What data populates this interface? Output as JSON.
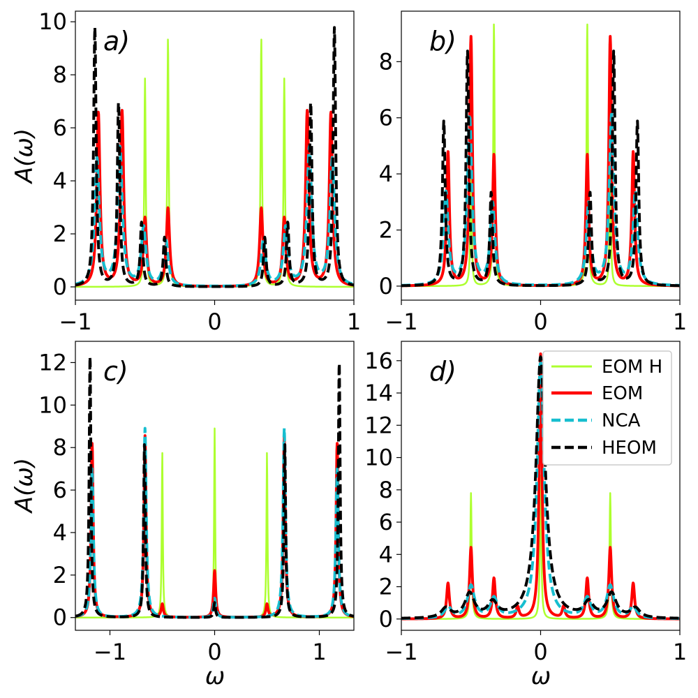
{
  "figure": {
    "ylabel": "A(ω)",
    "xlabel": "ω"
  },
  "legend": {
    "location": "upper-right of panel d",
    "entries": [
      {
        "label": "EOM H",
        "color": "#adff2f",
        "style": "solid"
      },
      {
        "label": "EOM",
        "color": "#ff0000",
        "style": "solid"
      },
      {
        "label": "NCA",
        "color": "#17becf",
        "style": "dashed"
      },
      {
        "label": "HEOM",
        "color": "#000000",
        "style": "dashed"
      }
    ]
  },
  "chart_data": [
    {
      "panel": "a)",
      "type": "line",
      "xlim": [
        -1,
        1
      ],
      "ylim": [
        -0.5,
        10.4
      ],
      "xticks": [
        "−1",
        "0",
        "1"
      ],
      "yticks": [
        "0",
        "2",
        "4",
        "6",
        "8",
        "10"
      ],
      "ylabel": "A(ω)",
      "xlabel": "",
      "series": [
        {
          "name": "EOM H",
          "color": "#adff2f",
          "dashed": false,
          "width": 2.5,
          "gamma": 0.006,
          "peaks": [
            [
              -0.5,
              7.85
            ],
            [
              -0.335,
              9.4
            ],
            [
              0.335,
              9.4
            ],
            [
              0.5,
              7.85
            ]
          ]
        },
        {
          "name": "EOM",
          "color": "#ff0000",
          "dashed": false,
          "width": 4,
          "gamma": 0.014,
          "peaks": [
            [
              -0.835,
              6.55
            ],
            [
              -0.665,
              6.6
            ],
            [
              -0.5,
              2.55
            ],
            [
              -0.335,
              2.95
            ],
            [
              0.335,
              2.95
            ],
            [
              0.5,
              2.55
            ],
            [
              0.665,
              6.6
            ],
            [
              0.835,
              6.55
            ]
          ]
        },
        {
          "name": "NCA",
          "color": "#17becf",
          "dashed": true,
          "width": 4,
          "gamma": 0.02,
          "peaks": [
            [
              -0.845,
              4.8
            ],
            [
              -0.68,
              5.2
            ],
            [
              -0.51,
              2.2
            ],
            [
              -0.35,
              1.7
            ],
            [
              0.35,
              1.7
            ],
            [
              0.51,
              2.2
            ],
            [
              0.68,
              5.2
            ],
            [
              0.845,
              4.8
            ]
          ]
        },
        {
          "name": "HEOM",
          "color": "#000000",
          "dashed": true,
          "width": 4,
          "gamma": 0.011,
          "peaks": [
            [
              -0.86,
              9.75
            ],
            [
              -0.69,
              6.95
            ],
            [
              -0.525,
              2.4
            ],
            [
              -0.36,
              1.85
            ],
            [
              0.36,
              1.85
            ],
            [
              0.525,
              2.4
            ],
            [
              0.69,
              6.95
            ],
            [
              0.86,
              9.75
            ]
          ]
        }
      ]
    },
    {
      "panel": "b)",
      "type": "line",
      "xlim": [
        -1,
        1
      ],
      "ylim": [
        -0.5,
        9.8
      ],
      "xticks": [
        "−1",
        "0",
        "1"
      ],
      "yticks": [
        "0",
        "2",
        "4",
        "6",
        "8"
      ],
      "ylabel": "",
      "xlabel": "",
      "series": [
        {
          "name": "EOM H",
          "color": "#adff2f",
          "dashed": false,
          "width": 2.5,
          "gamma": 0.006,
          "peaks": [
            [
              -0.5,
              4.0
            ],
            [
              -0.335,
              9.4
            ],
            [
              0.335,
              9.4
            ],
            [
              0.5,
              4.0
            ]
          ]
        },
        {
          "name": "EOM",
          "color": "#ff0000",
          "dashed": false,
          "width": 4,
          "gamma": 0.012,
          "peaks": [
            [
              -0.665,
              4.75
            ],
            [
              -0.5,
              8.85
            ],
            [
              -0.335,
              4.65
            ],
            [
              0.335,
              4.65
            ],
            [
              0.5,
              8.85
            ],
            [
              0.665,
              4.75
            ]
          ]
        },
        {
          "name": "NCA",
          "color": "#17becf",
          "dashed": true,
          "width": 4,
          "gamma": 0.02,
          "peaks": [
            [
              -0.68,
              3.3
            ],
            [
              -0.51,
              6.05
            ],
            [
              -0.345,
              2.9
            ],
            [
              0.345,
              2.9
            ],
            [
              0.51,
              6.05
            ],
            [
              0.68,
              3.3
            ]
          ]
        },
        {
          "name": "HEOM",
          "color": "#000000",
          "dashed": true,
          "width": 4,
          "gamma": 0.012,
          "peaks": [
            [
              -0.695,
              5.85
            ],
            [
              -0.525,
              8.35
            ],
            [
              -0.355,
              3.3
            ],
            [
              0.355,
              3.3
            ],
            [
              0.525,
              8.35
            ],
            [
              0.695,
              5.85
            ]
          ]
        }
      ]
    },
    {
      "panel": "c)",
      "type": "line",
      "xlim": [
        -1.33,
        1.33
      ],
      "ylim": [
        -0.6,
        13.0
      ],
      "xticks": [
        "−1",
        "0",
        "1"
      ],
      "xtick_values": [
        -1,
        0,
        1
      ],
      "yticks": [
        "0",
        "2",
        "4",
        "6",
        "8",
        "10",
        "12"
      ],
      "ylabel": "A(ω)",
      "xlabel": "ω",
      "series": [
        {
          "name": "EOM H",
          "color": "#adff2f",
          "dashed": false,
          "width": 2.5,
          "gamma": 0.006,
          "peaks": [
            [
              -0.5,
              7.8
            ],
            [
              0.0,
              8.9
            ],
            [
              0.5,
              7.8
            ]
          ]
        },
        {
          "name": "EOM",
          "color": "#ff0000",
          "dashed": false,
          "width": 4,
          "gamma": 0.012,
          "peaks": [
            [
              -1.17,
              8.2
            ],
            [
              -0.665,
              8.55
            ],
            [
              -0.5,
              0.6
            ],
            [
              0.0,
              2.2
            ],
            [
              0.5,
              0.6
            ],
            [
              0.665,
              8.55
            ],
            [
              1.17,
              8.2
            ]
          ]
        },
        {
          "name": "NCA",
          "color": "#17becf",
          "dashed": true,
          "width": 4,
          "gamma": 0.014,
          "peaks": [
            [
              -1.17,
              7.0
            ],
            [
              -0.665,
              8.9
            ],
            [
              0.0,
              0.9
            ],
            [
              0.665,
              8.9
            ],
            [
              1.17,
              7.0
            ]
          ]
        },
        {
          "name": "HEOM",
          "color": "#000000",
          "dashed": true,
          "width": 4,
          "gamma": 0.01,
          "peaks": [
            [
              -1.19,
              12.4
            ],
            [
              -0.67,
              8.2
            ],
            [
              0.0,
              0.7
            ],
            [
              0.67,
              8.2
            ],
            [
              1.19,
              12.1
            ]
          ]
        }
      ]
    },
    {
      "panel": "d)",
      "type": "line",
      "xlim": [
        -1,
        1
      ],
      "ylim": [
        -0.7,
        17.2
      ],
      "xticks": [
        "−1",
        "0",
        "1"
      ],
      "yticks": [
        "0",
        "2",
        "4",
        "6",
        "8",
        "10",
        "12",
        "14",
        "16"
      ],
      "ylabel": "",
      "xlabel": "ω",
      "series": [
        {
          "name": "EOM H",
          "color": "#adff2f",
          "dashed": false,
          "width": 2.5,
          "gamma": 0.006,
          "peaks": [
            [
              -0.5,
              7.8
            ],
            [
              0.0,
              8.9
            ],
            [
              0.5,
              7.8
            ]
          ]
        },
        {
          "name": "EOM",
          "color": "#ff0000",
          "dashed": false,
          "width": 4,
          "gamma": 0.012,
          "peaks": [
            [
              -0.665,
              2.2
            ],
            [
              -0.5,
              4.4
            ],
            [
              -0.335,
              2.5
            ],
            [
              -0.165,
              0.7
            ],
            [
              0.0,
              16.4
            ],
            [
              0.165,
              0.7
            ],
            [
              0.335,
              2.5
            ],
            [
              0.5,
              4.4
            ],
            [
              0.665,
              2.2
            ]
          ]
        },
        {
          "name": "NCA",
          "color": "#17becf",
          "dashed": true,
          "width": 4,
          "gamma": 0.03,
          "peaks": [
            [
              -0.665,
              0.7
            ],
            [
              -0.5,
              2.0
            ],
            [
              -0.335,
              1.2
            ],
            [
              0.0,
              16.0
            ],
            [
              0.335,
              1.2
            ],
            [
              0.5,
              2.0
            ],
            [
              0.665,
              0.7
            ]
          ]
        },
        {
          "name": "HEOM",
          "color": "#000000",
          "dashed": true,
          "width": 4,
          "gamma": 0.04,
          "peaks": [
            [
              -0.68,
              0.6
            ],
            [
              -0.51,
              1.5
            ],
            [
              -0.345,
              0.9
            ],
            [
              0.0,
              16.2
            ],
            [
              0.345,
              0.9
            ],
            [
              0.51,
              1.5
            ],
            [
              0.68,
              0.6
            ]
          ]
        }
      ]
    }
  ]
}
